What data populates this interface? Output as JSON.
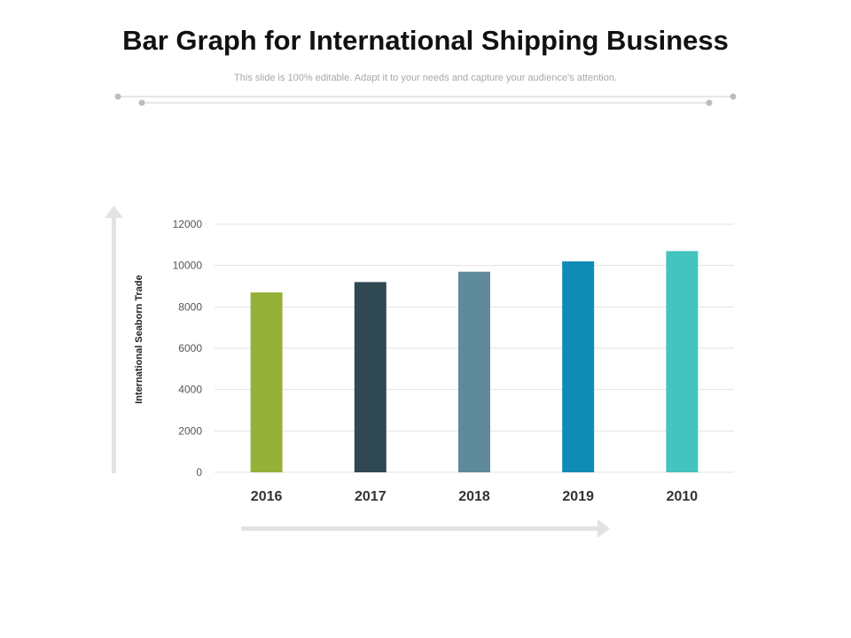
{
  "header": {
    "title": "Bar Graph for International Shipping Business",
    "subtitle": "This slide is 100% editable. Adapt it to your needs and capture your audience's attention."
  },
  "colors": {
    "bars": [
      "#95b13a",
      "#2f4852",
      "#5f8a9c",
      "#0f8bb6",
      "#43c4bf"
    ],
    "grid": "#e2e2e2",
    "arrow": "#e3e3e3",
    "decor": "#bdbdbd"
  },
  "chart_data": {
    "type": "bar",
    "title": "",
    "xlabel": "",
    "ylabel": "International Seaborn Trade",
    "categories": [
      "2016",
      "2017",
      "2018",
      "2019",
      "2010"
    ],
    "values": [
      8700,
      9200,
      9700,
      10200,
      10700
    ],
    "ylim": [
      0,
      12000
    ],
    "yticks": [
      0,
      2000,
      4000,
      6000,
      8000,
      10000,
      12000
    ],
    "grid": true,
    "legend": "none"
  }
}
